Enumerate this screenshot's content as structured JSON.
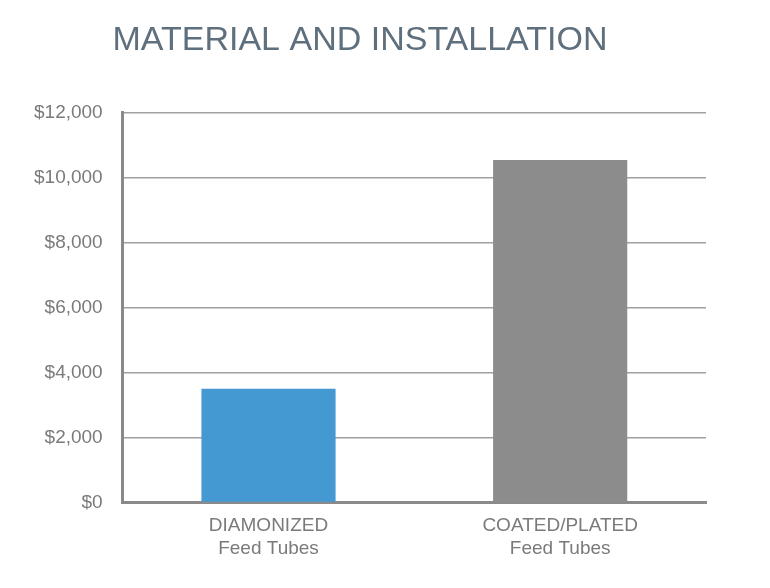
{
  "chart_data": {
    "type": "bar",
    "title": "MATERIAL AND INSTALLATION",
    "categories": [
      [
        "DIAMONIZED",
        "Feed Tubes"
      ],
      [
        "COATED/PLATED",
        "Feed Tubes"
      ]
    ],
    "values": [
      3500,
      10550
    ],
    "colors": [
      "#4499d3",
      "#8c8c8c"
    ],
    "ylim": [
      0,
      12000
    ],
    "yticks": [
      {
        "value": 0,
        "label": "$0"
      },
      {
        "value": 2000,
        "label": "$2,000"
      },
      {
        "value": 4000,
        "label": "$4,000"
      },
      {
        "value": 6000,
        "label": "$6,000"
      },
      {
        "value": 8000,
        "label": "$8,000"
      },
      {
        "value": 10000,
        "label": "$10,000"
      },
      {
        "value": 12000,
        "label": "$12,000"
      }
    ],
    "grid": true
  }
}
